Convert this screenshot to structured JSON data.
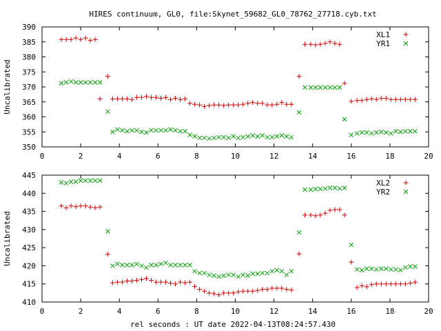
{
  "title": "HIRES continuum, GL0, file:Skynet_59682_GL0_78762_27718.cyb.txt",
  "xlabel": "rel seconds : UT date 2022-04-13T08:24:57.430",
  "colors": {
    "series1": "#d00000",
    "series2": "#00a000",
    "axes": "#000000"
  },
  "chart_data": [
    {
      "type": "scatter",
      "ylabel": "Uncalibrated",
      "xlim": [
        0,
        20
      ],
      "ylim": [
        350,
        390
      ],
      "xticks": [
        0,
        2,
        4,
        6,
        8,
        10,
        12,
        14,
        16,
        18,
        20
      ],
      "yticks": [
        350,
        355,
        360,
        365,
        370,
        375,
        380,
        385,
        390
      ],
      "legend_position": "top-right",
      "series": [
        {
          "name": "XL1",
          "marker": "plus",
          "color": "#d00000",
          "x": [
            1.0,
            1.25,
            1.5,
            1.75,
            2.0,
            2.25,
            2.5,
            2.75,
            3.0,
            3.4,
            3.65,
            3.9,
            4.15,
            4.4,
            4.65,
            4.9,
            5.15,
            5.4,
            5.65,
            5.9,
            6.15,
            6.4,
            6.65,
            6.9,
            7.15,
            7.4,
            7.65,
            7.9,
            8.15,
            8.4,
            8.65,
            8.9,
            9.15,
            9.4,
            9.65,
            9.9,
            10.15,
            10.4,
            10.65,
            10.9,
            11.15,
            11.4,
            11.65,
            11.9,
            12.15,
            12.4,
            12.65,
            12.9,
            13.3,
            13.6,
            13.9,
            14.15,
            14.4,
            14.65,
            14.9,
            15.15,
            15.4,
            15.65,
            16.0,
            16.3,
            16.55,
            16.8,
            17.05,
            17.3,
            17.55,
            17.8,
            18.05,
            18.3,
            18.55,
            18.8,
            19.05,
            19.3
          ],
          "y": [
            385.8,
            385.8,
            385.8,
            386.3,
            385.8,
            386.3,
            385.5,
            385.8,
            366.0,
            373.5,
            366.0,
            366.0,
            366.0,
            366.0,
            365.8,
            366.5,
            366.5,
            366.8,
            366.5,
            366.5,
            366.2,
            366.5,
            365.8,
            366.2,
            365.8,
            366.0,
            364.5,
            364.2,
            364.0,
            363.5,
            363.8,
            364.0,
            364.0,
            363.8,
            364.0,
            364.0,
            364.0,
            364.2,
            364.5,
            364.8,
            364.5,
            364.5,
            364.0,
            364.0,
            364.2,
            364.8,
            364.2,
            364.2,
            373.5,
            384.2,
            384.2,
            384.0,
            384.2,
            384.5,
            385.0,
            384.5,
            384.2,
            371.2,
            365.2,
            365.5,
            365.5,
            365.8,
            366.0,
            365.8,
            366.2,
            366.2,
            365.8,
            365.8,
            365.8,
            365.8,
            365.8,
            365.8
          ]
        },
        {
          "name": "YR1",
          "marker": "cross",
          "color": "#00a000",
          "x": [
            1.0,
            1.25,
            1.5,
            1.75,
            2.0,
            2.25,
            2.5,
            2.75,
            3.0,
            3.4,
            3.65,
            3.9,
            4.15,
            4.4,
            4.65,
            4.9,
            5.15,
            5.4,
            5.65,
            5.9,
            6.15,
            6.4,
            6.65,
            6.9,
            7.15,
            7.4,
            7.65,
            7.9,
            8.15,
            8.4,
            8.65,
            8.9,
            9.15,
            9.4,
            9.65,
            9.9,
            10.15,
            10.4,
            10.65,
            10.9,
            11.15,
            11.4,
            11.65,
            11.9,
            12.15,
            12.4,
            12.65,
            12.9,
            13.3,
            13.6,
            13.9,
            14.15,
            14.4,
            14.65,
            14.9,
            15.15,
            15.4,
            15.65,
            16.0,
            16.3,
            16.55,
            16.8,
            17.05,
            17.3,
            17.55,
            17.8,
            18.05,
            18.3,
            18.55,
            18.8,
            19.05,
            19.3
          ],
          "y": [
            371.2,
            371.5,
            371.8,
            371.5,
            371.5,
            371.5,
            371.5,
            371.5,
            371.5,
            361.8,
            355.0,
            355.8,
            355.5,
            355.2,
            355.5,
            355.5,
            355.0,
            354.8,
            355.5,
            355.5,
            355.5,
            355.5,
            355.8,
            355.5,
            355.2,
            355.2,
            354.0,
            353.5,
            353.0,
            353.0,
            352.8,
            353.0,
            353.2,
            353.2,
            353.0,
            353.5,
            353.0,
            353.2,
            353.5,
            353.8,
            353.5,
            353.8,
            353.2,
            353.2,
            353.5,
            353.8,
            353.5,
            353.2,
            361.5,
            369.8,
            369.8,
            369.8,
            369.8,
            369.8,
            369.8,
            369.8,
            369.8,
            359.2,
            354.0,
            354.5,
            354.8,
            354.8,
            354.5,
            354.8,
            355.0,
            354.8,
            354.5,
            355.2,
            355.0,
            355.2,
            355.2,
            355.2
          ]
        }
      ]
    },
    {
      "type": "scatter",
      "ylabel": "Uncalibrated",
      "xlim": [
        0,
        20
      ],
      "ylim": [
        410,
        445
      ],
      "xticks": [
        0,
        2,
        4,
        6,
        8,
        10,
        12,
        14,
        16,
        18,
        20
      ],
      "yticks": [
        410,
        415,
        420,
        425,
        430,
        435,
        440,
        445
      ],
      "legend_position": "top-right",
      "series": [
        {
          "name": "XL2",
          "marker": "plus",
          "color": "#d00000",
          "x": [
            1.0,
            1.25,
            1.5,
            1.75,
            2.0,
            2.25,
            2.5,
            2.75,
            3.0,
            3.4,
            3.65,
            3.9,
            4.15,
            4.4,
            4.65,
            4.9,
            5.15,
            5.4,
            5.65,
            5.9,
            6.15,
            6.4,
            6.65,
            6.9,
            7.15,
            7.4,
            7.65,
            7.9,
            8.15,
            8.4,
            8.65,
            8.9,
            9.15,
            9.4,
            9.65,
            9.9,
            10.15,
            10.4,
            10.65,
            10.9,
            11.15,
            11.4,
            11.65,
            11.9,
            12.15,
            12.4,
            12.65,
            12.9,
            13.3,
            13.6,
            13.9,
            14.15,
            14.4,
            14.65,
            14.9,
            15.15,
            15.4,
            15.65,
            16.0,
            16.3,
            16.55,
            16.8,
            17.05,
            17.3,
            17.55,
            17.8,
            18.05,
            18.3,
            18.55,
            18.8,
            19.05,
            19.3
          ],
          "y": [
            436.5,
            436.0,
            436.5,
            436.3,
            436.5,
            436.5,
            436.2,
            436.0,
            436.2,
            423.2,
            415.3,
            415.5,
            415.5,
            415.8,
            415.8,
            416.0,
            416.2,
            416.5,
            416.0,
            415.5,
            415.5,
            415.5,
            415.2,
            415.0,
            415.5,
            415.3,
            415.5,
            414.3,
            413.5,
            413.0,
            412.5,
            412.3,
            412.0,
            412.5,
            412.5,
            412.5,
            412.8,
            413.0,
            413.0,
            413.0,
            413.2,
            413.5,
            413.5,
            413.8,
            413.8,
            413.8,
            413.5,
            413.3,
            423.3,
            434.0,
            434.0,
            433.8,
            434.0,
            434.5,
            435.3,
            435.5,
            435.5,
            434.0,
            421.0,
            414.0,
            414.5,
            414.2,
            414.8,
            415.0,
            415.0,
            415.0,
            415.0,
            415.0,
            415.0,
            415.0,
            415.2,
            415.5
          ]
        },
        {
          "name": "YR2",
          "marker": "cross",
          "color": "#00a000",
          "x": [
            1.0,
            1.25,
            1.5,
            1.75,
            2.0,
            2.25,
            2.5,
            2.75,
            3.0,
            3.4,
            3.65,
            3.9,
            4.15,
            4.4,
            4.65,
            4.9,
            5.15,
            5.4,
            5.65,
            5.9,
            6.15,
            6.4,
            6.65,
            6.9,
            7.15,
            7.4,
            7.65,
            7.9,
            8.15,
            8.4,
            8.65,
            8.9,
            9.15,
            9.4,
            9.65,
            9.9,
            10.15,
            10.4,
            10.65,
            10.9,
            11.15,
            11.4,
            11.65,
            11.9,
            12.15,
            12.4,
            12.65,
            12.9,
            13.3,
            13.6,
            13.9,
            14.15,
            14.4,
            14.65,
            14.9,
            15.15,
            15.4,
            15.65,
            16.0,
            16.3,
            16.55,
            16.8,
            17.05,
            17.3,
            17.55,
            17.8,
            18.05,
            18.3,
            18.55,
            18.8,
            19.05,
            19.3
          ],
          "y": [
            443.0,
            442.8,
            443.2,
            443.2,
            443.5,
            443.5,
            443.5,
            443.5,
            443.5,
            429.5,
            420.0,
            420.5,
            420.2,
            420.2,
            420.2,
            420.5,
            420.0,
            419.5,
            420.2,
            420.2,
            420.5,
            420.8,
            420.2,
            420.2,
            420.2,
            420.2,
            420.2,
            418.5,
            418.0,
            418.0,
            417.5,
            417.3,
            417.0,
            417.3,
            417.5,
            417.5,
            417.0,
            417.5,
            417.3,
            417.8,
            417.8,
            418.0,
            418.0,
            418.5,
            418.8,
            418.5,
            417.5,
            418.5,
            429.2,
            441.0,
            441.0,
            441.2,
            441.2,
            441.3,
            441.5,
            441.5,
            441.3,
            441.5,
            425.8,
            419.0,
            418.8,
            419.2,
            419.2,
            419.0,
            419.2,
            419.2,
            419.0,
            419.0,
            418.8,
            419.5,
            419.8,
            419.8
          ]
        }
      ]
    }
  ]
}
